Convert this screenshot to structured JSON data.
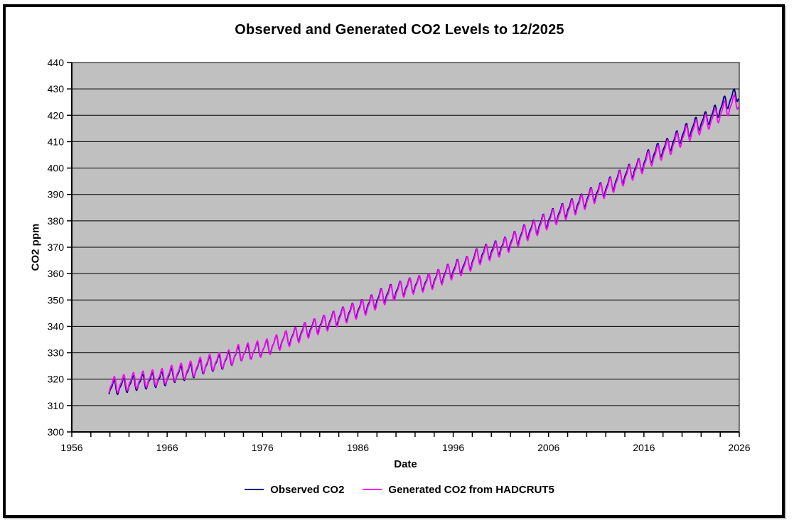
{
  "colors": {
    "page_background": "#FFFFFF",
    "frame_border": "#000000",
    "plot_background": "#C0C0C0",
    "gridline": "#000000",
    "axis": "#000000",
    "observed_line": "#000080",
    "generated_line": "#FF00FF"
  },
  "chart_data": {
    "type": "line",
    "title": "Observed and Generated CO2 Levels to 12/2025",
    "xlabel": "Date",
    "ylabel": "CO2 ppm",
    "xlim": [
      1956,
      2026
    ],
    "ylim": [
      300,
      440
    ],
    "x_tick_step": 10,
    "x_minor_tick_step": 2,
    "y_tick_step": 10,
    "x_tick_labels": [
      "1956",
      "1966",
      "1976",
      "1986",
      "1996",
      "2006",
      "2016",
      "2026"
    ],
    "y_tick_labels": [
      "300",
      "310",
      "320",
      "330",
      "340",
      "350",
      "360",
      "370",
      "380",
      "390",
      "400",
      "410",
      "420",
      "430",
      "440"
    ],
    "grid": "horizontal-major",
    "legend_position": "bottom-center",
    "time_range": {
      "start": 1959.9,
      "end": 2025.96,
      "end_label": "12/2025",
      "sampling": "monthly"
    },
    "seasonal_cycle": {
      "model": "value = annual_mean_interpolated + scale * (a1*sin(2*pi*(f-phase)) - a2*sin(4*pi*(f-phase))), f = fractional year; peak ~May, trough ~Oct, ~6 ppm peak-to-trough",
      "a1": 2.5,
      "a2": 0.9,
      "phase": 0.115
    },
    "series": [
      {
        "id": "observed-co2",
        "name": "Observed CO2",
        "color": "#000080",
        "seasonal_scale": 1.0,
        "seasonal_phase_offset": 0.0,
        "annual_means_ppm": [
          [
            1959,
            316.0
          ],
          [
            1960,
            316.9
          ],
          [
            1961,
            317.6
          ],
          [
            1962,
            318.5
          ],
          [
            1963,
            319.0
          ],
          [
            1964,
            319.6
          ],
          [
            1965,
            320.0
          ],
          [
            1966,
            321.4
          ],
          [
            1967,
            322.2
          ],
          [
            1968,
            323.0
          ],
          [
            1969,
            324.6
          ],
          [
            1970,
            325.7
          ],
          [
            1971,
            326.3
          ],
          [
            1972,
            327.5
          ],
          [
            1973,
            329.7
          ],
          [
            1974,
            330.2
          ],
          [
            1975,
            331.1
          ],
          [
            1976,
            332.0
          ],
          [
            1977,
            333.8
          ],
          [
            1978,
            335.4
          ],
          [
            1979,
            336.8
          ],
          [
            1980,
            338.7
          ],
          [
            1981,
            340.1
          ],
          [
            1982,
            341.4
          ],
          [
            1983,
            343.0
          ],
          [
            1984,
            344.6
          ],
          [
            1985,
            346.0
          ],
          [
            1986,
            347.4
          ],
          [
            1987,
            349.2
          ],
          [
            1988,
            351.6
          ],
          [
            1989,
            353.1
          ],
          [
            1990,
            354.4
          ],
          [
            1991,
            355.6
          ],
          [
            1992,
            356.4
          ],
          [
            1993,
            357.1
          ],
          [
            1994,
            358.8
          ],
          [
            1995,
            360.8
          ],
          [
            1996,
            362.6
          ],
          [
            1997,
            363.7
          ],
          [
            1998,
            366.7
          ],
          [
            1999,
            368.4
          ],
          [
            2000,
            369.6
          ],
          [
            2001,
            371.1
          ],
          [
            2002,
            373.3
          ],
          [
            2003,
            375.8
          ],
          [
            2004,
            377.5
          ],
          [
            2005,
            379.8
          ],
          [
            2006,
            381.9
          ],
          [
            2007,
            383.8
          ],
          [
            2008,
            385.6
          ],
          [
            2009,
            387.4
          ],
          [
            2010,
            389.9
          ],
          [
            2011,
            391.7
          ],
          [
            2012,
            393.9
          ],
          [
            2013,
            396.5
          ],
          [
            2014,
            398.7
          ],
          [
            2015,
            400.8
          ],
          [
            2016,
            404.2
          ],
          [
            2017,
            406.6
          ],
          [
            2018,
            408.5
          ],
          [
            2019,
            411.4
          ],
          [
            2020,
            414.2
          ],
          [
            2021,
            416.5
          ],
          [
            2022,
            418.6
          ],
          [
            2023,
            421.1
          ],
          [
            2024,
            424.6
          ],
          [
            2025,
            427.3
          ]
        ]
      },
      {
        "id": "generated-co2",
        "name": "Generated CO2 from HADCRUT5",
        "color": "#FF00FF",
        "seasonal_scale": 1.1,
        "seasonal_phase_offset": 0.02,
        "annual_means_ppm": [
          [
            1959,
            317.1
          ],
          [
            1960,
            317.9
          ],
          [
            1961,
            318.6
          ],
          [
            1962,
            319.4
          ],
          [
            1963,
            319.9
          ],
          [
            1964,
            320.4
          ],
          [
            1965,
            320.9
          ],
          [
            1966,
            322.1
          ],
          [
            1967,
            322.9
          ],
          [
            1968,
            323.7
          ],
          [
            1969,
            325.2
          ],
          [
            1970,
            326.3
          ],
          [
            1971,
            326.9
          ],
          [
            1972,
            328.0
          ],
          [
            1973,
            330.0
          ],
          [
            1974,
            330.5
          ],
          [
            1975,
            331.3
          ],
          [
            1976,
            332.1
          ],
          [
            1977,
            333.7
          ],
          [
            1978,
            335.2
          ],
          [
            1979,
            336.5
          ],
          [
            1980,
            338.3
          ],
          [
            1981,
            339.7
          ],
          [
            1982,
            341.0
          ],
          [
            1983,
            342.6
          ],
          [
            1984,
            344.1
          ],
          [
            1985,
            345.5
          ],
          [
            1986,
            346.9
          ],
          [
            1987,
            348.7
          ],
          [
            1988,
            351.0
          ],
          [
            1989,
            352.5
          ],
          [
            1990,
            353.9
          ],
          [
            1991,
            355.2
          ],
          [
            1992,
            356.0
          ],
          [
            1993,
            356.7
          ],
          [
            1994,
            358.4
          ],
          [
            1995,
            360.3
          ],
          [
            1996,
            362.0
          ],
          [
            1997,
            363.2
          ],
          [
            1998,
            366.1
          ],
          [
            1999,
            367.8
          ],
          [
            2000,
            369.0
          ],
          [
            2001,
            370.6
          ],
          [
            2002,
            372.8
          ],
          [
            2003,
            375.2
          ],
          [
            2004,
            376.9
          ],
          [
            2005,
            379.2
          ],
          [
            2006,
            381.2
          ],
          [
            2007,
            383.1
          ],
          [
            2008,
            384.9
          ],
          [
            2009,
            386.8
          ],
          [
            2010,
            389.2
          ],
          [
            2011,
            391.0
          ],
          [
            2012,
            393.2
          ],
          [
            2013,
            395.8
          ],
          [
            2014,
            398.0
          ],
          [
            2015,
            400.1
          ],
          [
            2016,
            403.3
          ],
          [
            2017,
            405.6
          ],
          [
            2018,
            407.5
          ],
          [
            2019,
            410.3
          ],
          [
            2020,
            413.0
          ],
          [
            2021,
            415.2
          ],
          [
            2022,
            417.2
          ],
          [
            2023,
            419.5
          ],
          [
            2024,
            422.3
          ],
          [
            2025,
            424.7
          ]
        ]
      }
    ]
  }
}
